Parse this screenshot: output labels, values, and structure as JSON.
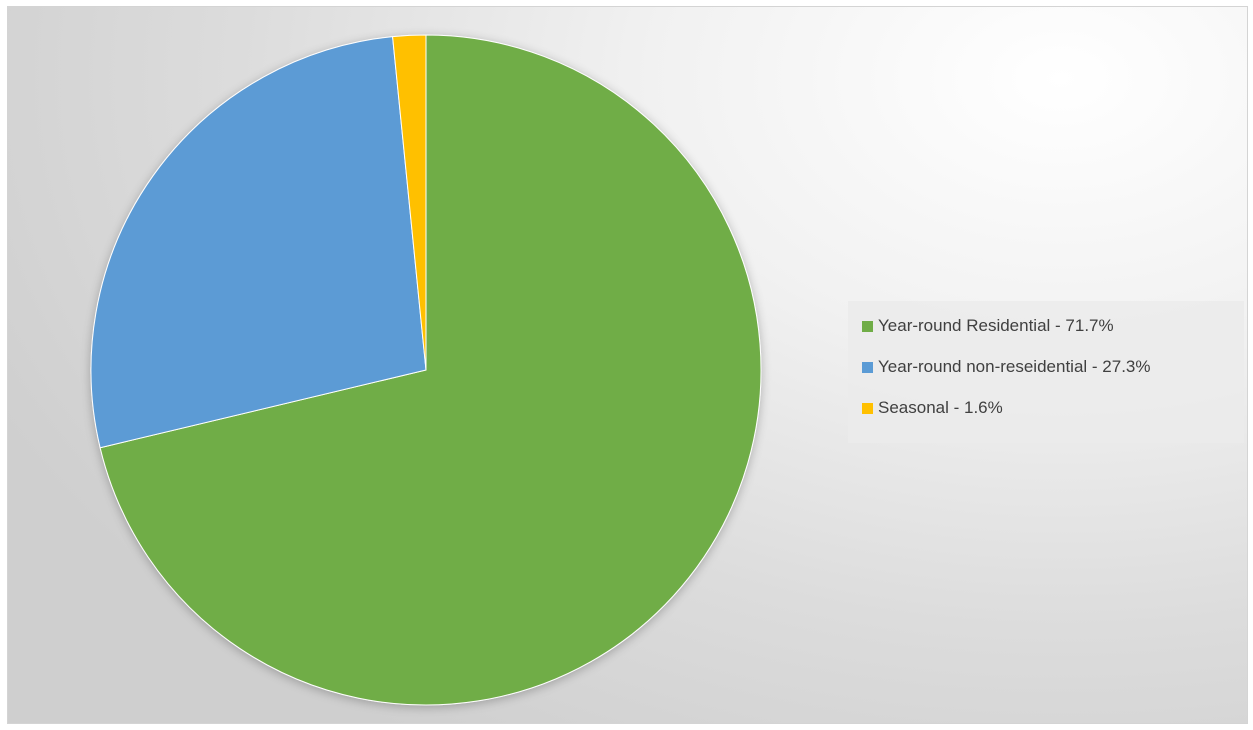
{
  "chart_data": {
    "type": "pie",
    "title": "",
    "legend_position": "right",
    "slices": [
      {
        "label": "Year-round Residential - 71.7%",
        "value": 71.7,
        "color": "#70ad47"
      },
      {
        "label": "Year-round non-reseidential - 27.3%",
        "value": 27.3,
        "color": "#5b9bd5"
      },
      {
        "label": "Seasonal - 1.6%",
        "value": 1.6,
        "color": "#ffc000"
      }
    ]
  }
}
